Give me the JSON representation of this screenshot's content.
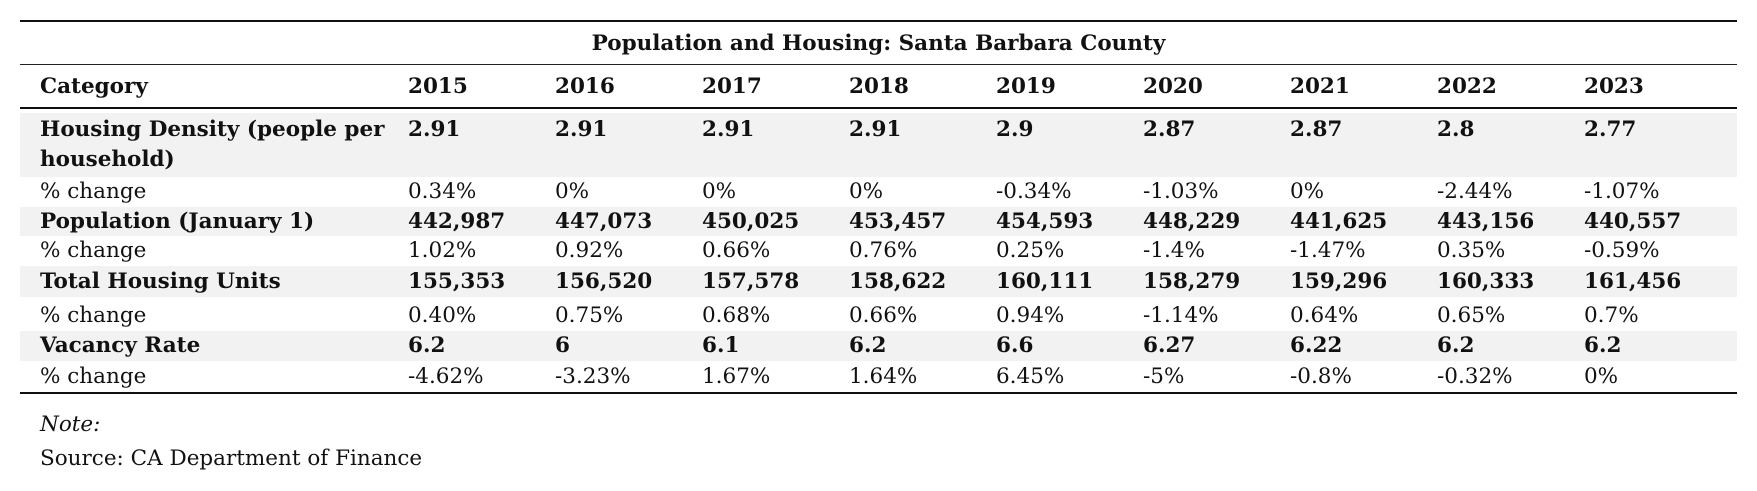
{
  "title": "Population and Housing: Santa Barbara County",
  "columns": [
    "Category",
    "2015",
    "2016",
    "2017",
    "2018",
    "2019",
    "2020",
    "2021",
    "2022",
    "2023"
  ],
  "rows": [
    {
      "label": "Housing Density (people per household)",
      "values": [
        "2.91",
        "2.91",
        "2.91",
        "2.91",
        "2.9",
        "2.87",
        "2.87",
        "2.8",
        "2.77"
      ]
    },
    {
      "label": "% change",
      "values": [
        "0.34%",
        "0%",
        "0%",
        "0%",
        "-0.34%",
        "-1.03%",
        "0%",
        "-2.44%",
        "-1.07%"
      ]
    },
    {
      "label": "Population (January 1)",
      "values": [
        "442,987",
        "447,073",
        "450,025",
        "453,457",
        "454,593",
        "448,229",
        "441,625",
        "443,156",
        "440,557"
      ]
    },
    {
      "label": "% change",
      "values": [
        "1.02%",
        "0.92%",
        "0.66%",
        "0.76%",
        "0.25%",
        "-1.4%",
        "-1.47%",
        "0.35%",
        "-0.59%"
      ]
    },
    {
      "label": "Total Housing Units",
      "values": [
        "155,353",
        "156,520",
        "157,578",
        "158,622",
        "160,111",
        "158,279",
        "159,296",
        "160,333",
        "161,456"
      ]
    },
    {
      "label": "% change",
      "values": [
        "0.40%",
        "0.75%",
        "0.68%",
        "0.66%",
        "0.94%",
        "-1.14%",
        "0.64%",
        "0.65%",
        "0.7%"
      ]
    },
    {
      "label": "Vacancy Rate",
      "values": [
        "6.2",
        "6",
        "6.1",
        "6.2",
        "6.6",
        "6.27",
        "6.22",
        "6.2",
        "6.2"
      ]
    },
    {
      "label": "% change",
      "values": [
        "-4.62%",
        "-3.23%",
        "1.67%",
        "1.64%",
        "6.45%",
        "-5%",
        "-0.8%",
        "-0.32%",
        "0%"
      ]
    }
  ],
  "note_label": "Note:",
  "source": "Source: CA Department of Finance",
  "colors": {
    "band": "#f2f2f2",
    "rule": "#111111",
    "text": "#111111"
  }
}
